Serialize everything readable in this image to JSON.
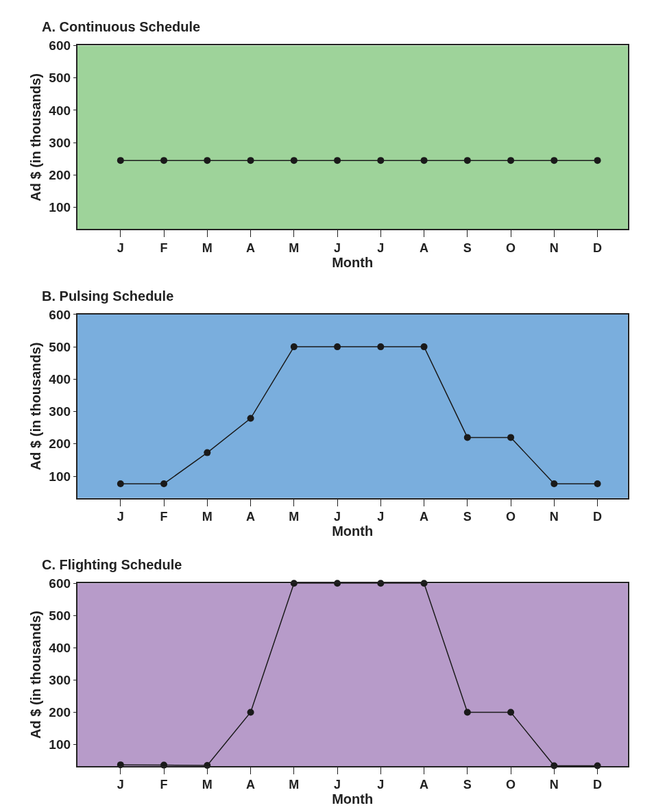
{
  "chart_data": [
    {
      "type": "line",
      "title": "A. Continuous Schedule",
      "xlabel": "Month",
      "ylabel": "Ad $ (in thousands)",
      "categories": [
        "J",
        "F",
        "M",
        "A",
        "M",
        "J",
        "J",
        "A",
        "S",
        "O",
        "N",
        "D"
      ],
      "series": [
        {
          "color": "#1a1a1a",
          "values": [
            245,
            245,
            245,
            245,
            245,
            245,
            245,
            245,
            245,
            245,
            245,
            245
          ]
        }
      ],
      "ylim": [
        33,
        600
      ],
      "yticks": [
        100,
        200,
        300,
        400,
        500,
        600
      ],
      "marker": "circle",
      "line_style": "solid",
      "grid": false
    },
    {
      "type": "line",
      "title": "B. Pulsing Schedule",
      "xlabel": "Month",
      "ylabel": "Ad $ (in thousands)",
      "categories": [
        "J",
        "F",
        "M",
        "A",
        "M",
        "J",
        "J",
        "A",
        "S",
        "O",
        "N",
        "D"
      ],
      "series": [
        {
          "color": "#1a1a1a",
          "values": [
            77,
            77,
            173,
            279,
            500,
            500,
            500,
            500,
            220,
            220,
            77,
            77
          ]
        }
      ],
      "ylim": [
        33,
        600
      ],
      "yticks": [
        100,
        200,
        300,
        400,
        500,
        600
      ],
      "marker": "circle",
      "line_style": "solid",
      "grid": false
    },
    {
      "type": "line",
      "title": "C. Flighting Schedule",
      "xlabel": "Month",
      "ylabel": "Ad $ (in thousands)",
      "categories": [
        "J",
        "F",
        "M",
        "A",
        "M",
        "J",
        "J",
        "A",
        "S",
        "O",
        "N",
        "D"
      ],
      "series": [
        {
          "color": "#1a1a1a",
          "values": [
            37,
            36,
            35,
            200,
            600,
            600,
            600,
            600,
            200,
            200,
            34,
            34
          ]
        }
      ],
      "ylim": [
        33,
        600
      ],
      "yticks": [
        100,
        200,
        300,
        400,
        500,
        600
      ],
      "marker": "circle",
      "line_style": "solid",
      "grid": false
    }
  ]
}
